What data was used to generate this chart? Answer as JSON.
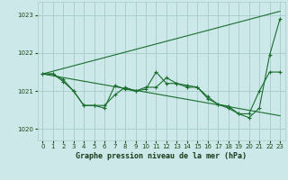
{
  "title": "Graphe pression niveau de la mer (hPa)",
  "bg_color": "#cce8e8",
  "grid_color": "#aacece",
  "line_color": "#1a6e2e",
  "xlim": [
    -0.5,
    23.5
  ],
  "ylim": [
    1019.7,
    1023.35
  ],
  "yticks": [
    1020,
    1021,
    1022,
    1023
  ],
  "xticks": [
    0,
    1,
    2,
    3,
    4,
    5,
    6,
    7,
    8,
    9,
    10,
    11,
    12,
    13,
    14,
    15,
    16,
    17,
    18,
    19,
    20,
    21,
    22,
    23
  ],
  "series1_x": [
    0,
    1,
    2,
    3,
    4,
    5,
    6,
    7,
    8,
    9,
    10,
    11,
    12,
    13,
    14,
    15,
    16,
    17,
    18,
    19,
    20,
    21,
    22,
    23
  ],
  "series1_y": [
    1021.45,
    1021.45,
    1021.25,
    1021.0,
    1020.62,
    1020.62,
    1020.55,
    1021.15,
    1021.05,
    1021.0,
    1021.05,
    1021.5,
    1021.2,
    1021.2,
    1021.1,
    1021.1,
    1020.8,
    1020.65,
    1020.55,
    1020.4,
    1020.3,
    1020.55,
    1021.95,
    1022.9
  ],
  "series2_x": [
    0,
    1,
    2,
    3,
    4,
    5,
    6,
    7,
    8,
    9,
    10,
    11,
    12,
    13,
    14,
    15,
    16,
    17,
    18,
    19,
    20,
    21,
    22,
    23
  ],
  "series2_y": [
    1021.45,
    1021.45,
    1021.3,
    1021.0,
    1020.62,
    1020.62,
    1020.62,
    1020.9,
    1021.1,
    1021.0,
    1021.1,
    1021.1,
    1021.35,
    1021.2,
    1021.15,
    1021.1,
    1020.85,
    1020.65,
    1020.6,
    1020.4,
    1020.4,
    1021.0,
    1021.5,
    1021.5
  ],
  "series3_x": [
    0,
    23
  ],
  "series3_y": [
    1021.45,
    1023.1
  ],
  "series4_x": [
    0,
    23
  ],
  "series4_y": [
    1021.45,
    1020.35
  ]
}
